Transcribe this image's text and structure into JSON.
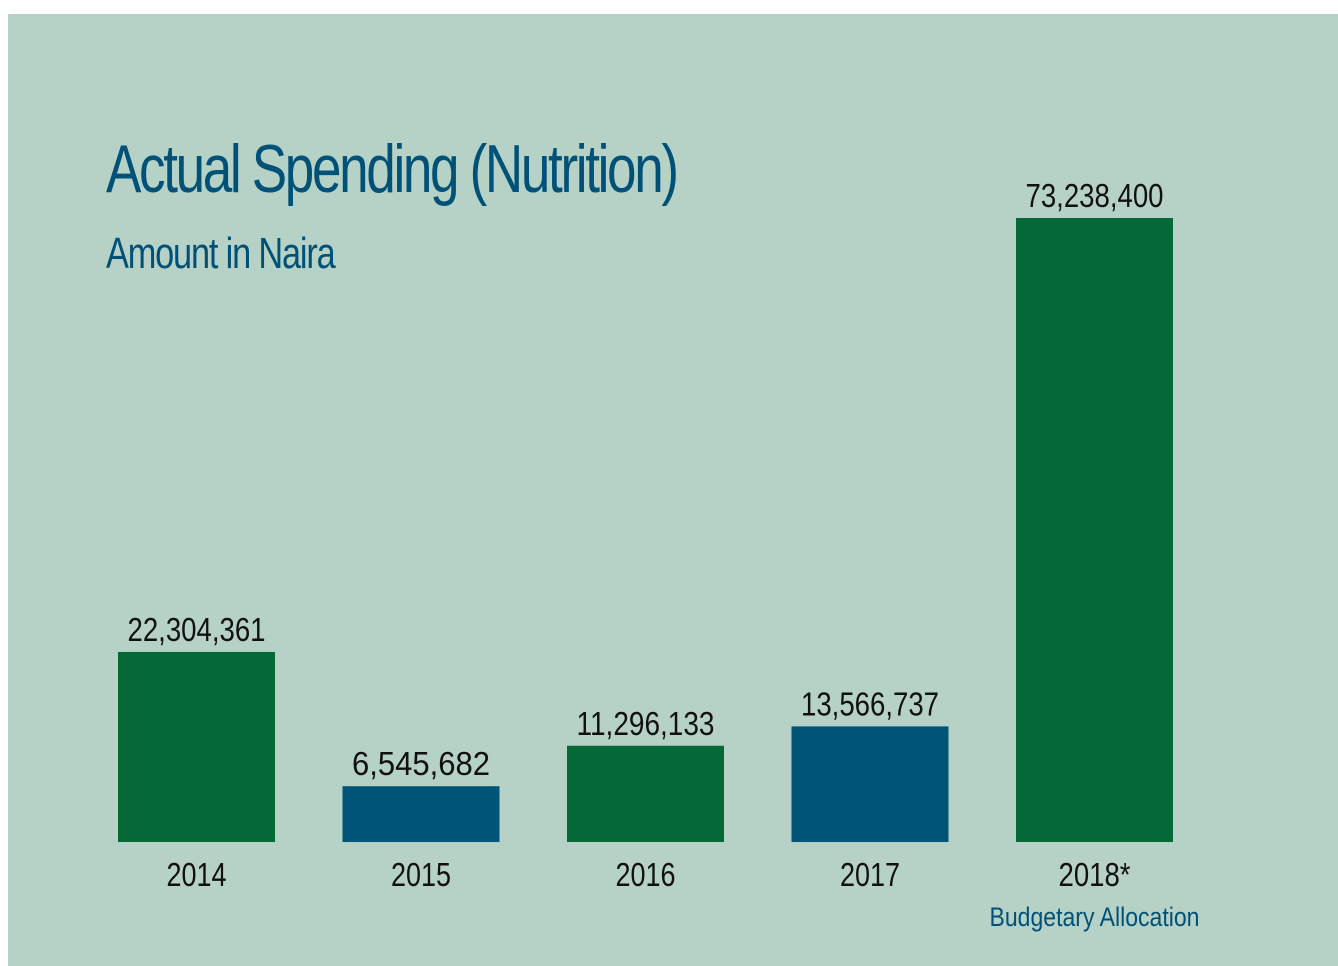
{
  "colors": {
    "background": "#b6d1c5",
    "accent_text": "#005177",
    "green": "#046937",
    "blue": "#005477"
  },
  "chart_data": {
    "type": "bar",
    "title": "Actual Spending (Nutrition)",
    "subtitle": "Amount in Naira",
    "categories": [
      "2014",
      "2015",
      "2016",
      "2017",
      "2018*"
    ],
    "values": [
      22304361,
      6545682,
      11296133,
      13566737,
      73238400
    ],
    "value_labels": [
      "22,304,361",
      "6,545,682",
      "11,296,133",
      "13,566,737",
      "73,238,400"
    ],
    "bar_colors": [
      "#046937",
      "#005477",
      "#046937",
      "#005477",
      "#046937"
    ],
    "annotations": [
      {
        "category": "2018*",
        "text": "Budgetary Allocation"
      }
    ],
    "xlabel": "",
    "ylabel": "",
    "ylim": [
      0,
      73238400
    ],
    "grid": false,
    "legend": "none"
  }
}
